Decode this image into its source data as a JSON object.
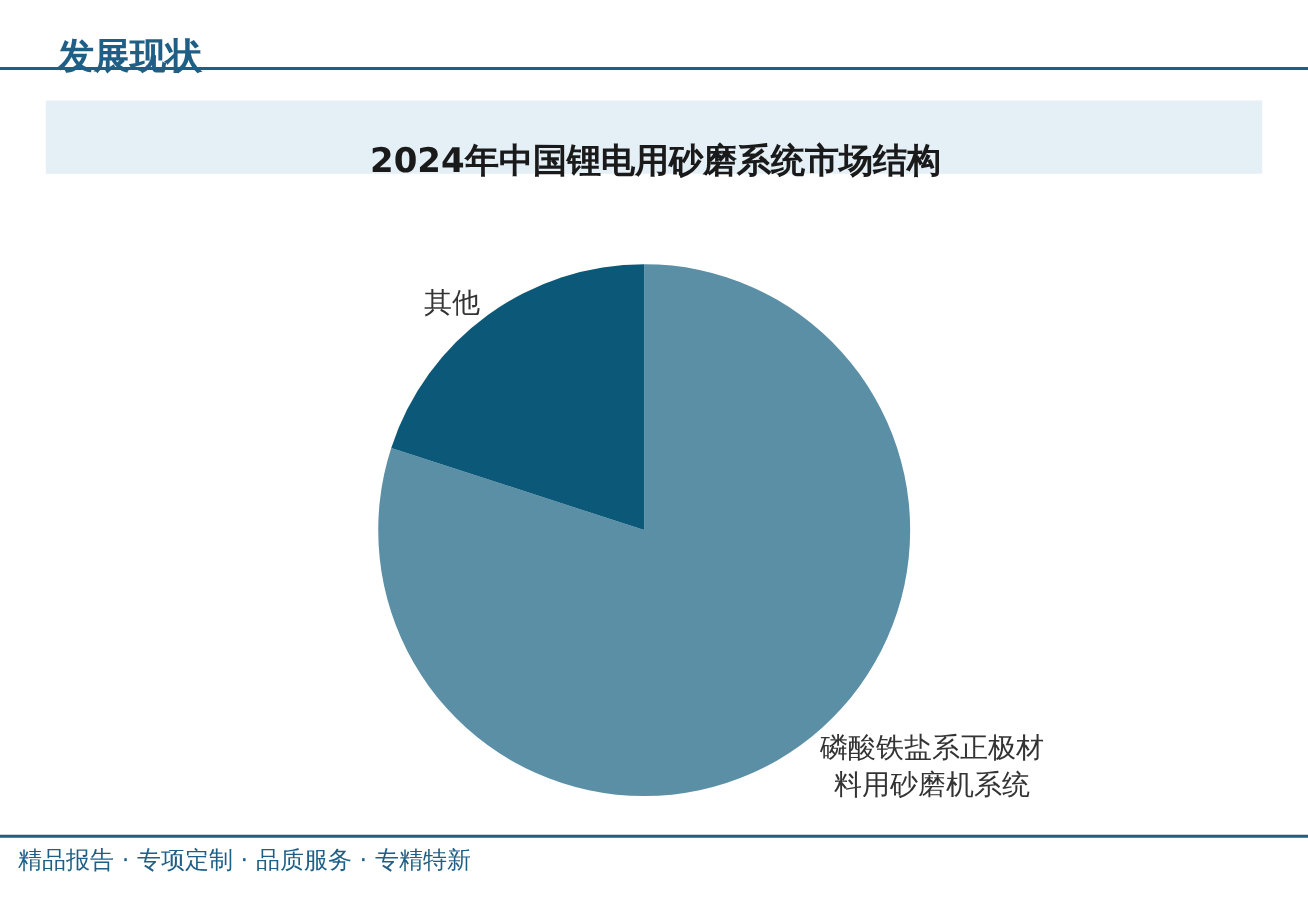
{
  "chart_data": {
    "type": "pie",
    "title": "2024年中国锂电用砂磨系统市场结构",
    "categories": [
      "磷酸铁盐系正极材料用砂磨机系统",
      "其他"
    ],
    "values": [
      80,
      20
    ],
    "colors": [
      "#5b8fa6",
      "#0b5879"
    ],
    "legend": false,
    "annotations": [
      "发展现状",
      "精品报告 · 专项定制 · 品质服务 · 专精特新"
    ]
  }
}
